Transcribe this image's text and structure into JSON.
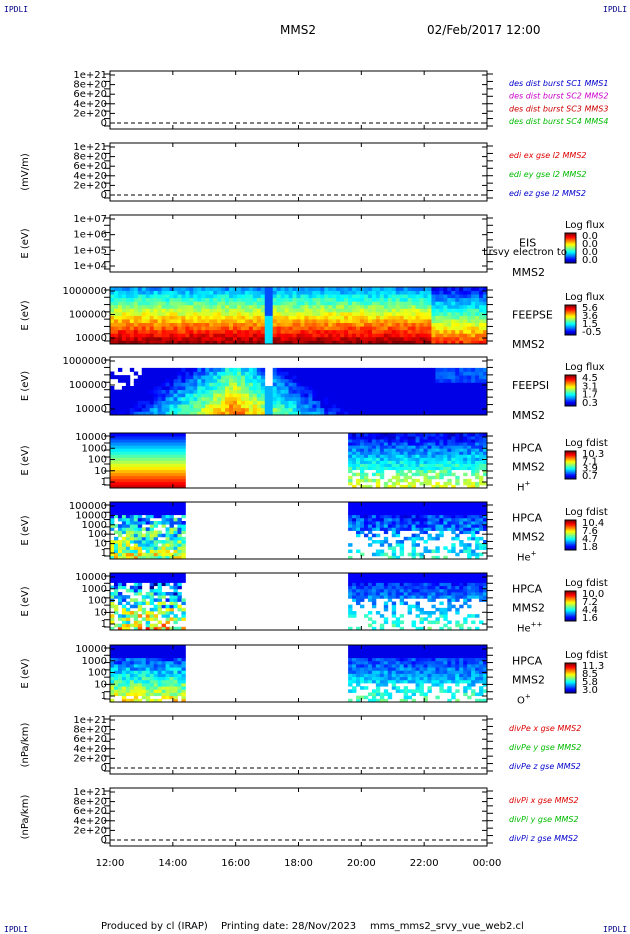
{
  "header": {
    "corner_tl": "IPDLI",
    "corner_tr": "IPDLI",
    "corner_bl": "IPDLI",
    "corner_br": "IPDLI",
    "mission": "MMS2",
    "datetime": "02/Feb/2017 12:00"
  },
  "footer": {
    "produced_by": "Produced by cl (IRAP)",
    "printing_date": "Printing date: 28/Nov/2023",
    "script": "mms_mms2_srvy_vue_web2.cl"
  },
  "colors": {
    "mms1": "#0000cc",
    "mms2": "#cc00cc",
    "mms3": "#cc0000",
    "mms4": "#00bb00",
    "x": "#dd0000",
    "y": "#00bb00",
    "z": "#0000cc"
  },
  "chart_data": {
    "type": "heatmap",
    "x_tick_labels": [
      "12:00",
      "14:00",
      "16:00",
      "18:00",
      "20:00",
      "22:00",
      "00:00"
    ],
    "panels": [
      {
        "id": "des",
        "ylabel": "",
        "yticks": [
          "1e+21",
          "8e+20",
          "6e+20",
          "4e+20",
          "2e+20",
          "0"
        ],
        "legend": [
          {
            "text": "des dist burst SC1 MMS1",
            "color": "#0000cc"
          },
          {
            "text": "des dist burst SC2 MMS2",
            "color": "#cc00cc"
          },
          {
            "text": "des dist burst SC3 MMS3",
            "color": "#cc0000"
          },
          {
            "text": "des dist burst SC4 MMS4",
            "color": "#00bb00"
          }
        ]
      },
      {
        "id": "edi",
        "ylabel": "(mV/m)",
        "yticks": [
          "1e+21",
          "8e+20",
          "6e+20",
          "4e+20",
          "2e+20",
          "0"
        ],
        "legend": [
          {
            "text": "edi ex gse l2 MMS2",
            "color": "#dd0000"
          },
          {
            "text": "edi ey gse l2 MMS2",
            "color": "#00bb00"
          },
          {
            "text": "edi ez gse l2 MMS2",
            "color": "#0000cc"
          }
        ]
      },
      {
        "id": "eis",
        "ylabel": "E (eV)",
        "yticks": [
          "1e+07",
          "1e+06",
          "1e+05",
          "1e+04"
        ],
        "name": "EIS",
        "sc": "MMS2",
        "overlay": "Lrsvy electron to",
        "cbar_title": "Log flux",
        "cbar_ticks": [
          "0.0",
          "0.0",
          "0.0",
          "0.0"
        ]
      },
      {
        "id": "feepse",
        "ylabel": "E (eV)",
        "yticks": [
          "1000000",
          "100000",
          "10000"
        ],
        "name": "FEEPSE",
        "sc": "MMS2",
        "cbar_title": "Log flux",
        "cbar_ticks": [
          "5.6",
          "3.6",
          "1.5",
          "-0.5"
        ]
      },
      {
        "id": "feepsi",
        "ylabel": "E (eV)",
        "yticks": [
          "1000000",
          "100000",
          "10000"
        ],
        "name": "FEEPSI",
        "sc": "MMS2",
        "cbar_title": "Log flux",
        "cbar_ticks": [
          "4.5",
          "3.1",
          "1.7",
          "0.3"
        ]
      },
      {
        "id": "hpca_h",
        "ylabel": "E (eV)",
        "yticks": [
          "10000",
          "1000",
          "100",
          "10",
          "1"
        ],
        "name": "HPCA",
        "sc": "MMS2",
        "species": "H",
        "charge": "+",
        "cbar_title": "Log fdist",
        "cbar_ticks": [
          "10.3",
          "7.1",
          "3.9",
          "0.7"
        ]
      },
      {
        "id": "hpca_he",
        "ylabel": "E (eV)",
        "yticks": [
          "100000",
          "10000",
          "1000",
          "100",
          "10",
          "1"
        ],
        "name": "HPCA",
        "sc": "MMS2",
        "species": "He",
        "charge": "+",
        "cbar_title": "Log fdist",
        "cbar_ticks": [
          "10.4",
          "7.6",
          "4.7",
          "1.8"
        ]
      },
      {
        "id": "hpca_hepp",
        "ylabel": "E (eV)",
        "yticks": [
          "10000",
          "1000",
          "100",
          "10",
          "1"
        ],
        "name": "HPCA",
        "sc": "MMS2",
        "species": "He",
        "charge": "++",
        "cbar_title": "Log fdist",
        "cbar_ticks": [
          "10.0",
          "7.2",
          "4.4",
          "1.6"
        ]
      },
      {
        "id": "hpca_o",
        "ylabel": "E (eV)",
        "yticks": [
          "10000",
          "1000",
          "100",
          "10",
          "1"
        ],
        "name": "HPCA",
        "sc": "MMS2",
        "species": "O",
        "charge": "+",
        "cbar_title": "Log fdist",
        "cbar_ticks": [
          "11.3",
          "8.5",
          "5.8",
          "3.0"
        ]
      },
      {
        "id": "divpe",
        "ylabel": "(nPa/km)",
        "yticks": [
          "1e+21",
          "8e+20",
          "6e+20",
          "4e+20",
          "2e+20",
          "0"
        ],
        "legend": [
          {
            "text": "divPe x gse MMS2",
            "color": "#dd0000"
          },
          {
            "text": "divPe y gse MMS2",
            "color": "#00bb00"
          },
          {
            "text": "divPe z gse MMS2",
            "color": "#0000cc"
          }
        ]
      },
      {
        "id": "divpi",
        "ylabel": "(nPa/km)",
        "yticks": [
          "1e+21",
          "8e+20",
          "6e+20",
          "4e+20",
          "2e+20",
          "0"
        ],
        "legend": [
          {
            "text": "divPi x gse MMS2",
            "color": "#dd0000"
          },
          {
            "text": "divPi y gse MMS2",
            "color": "#00bb00"
          },
          {
            "text": "divPi z gse MMS2",
            "color": "#0000cc"
          }
        ]
      }
    ]
  }
}
